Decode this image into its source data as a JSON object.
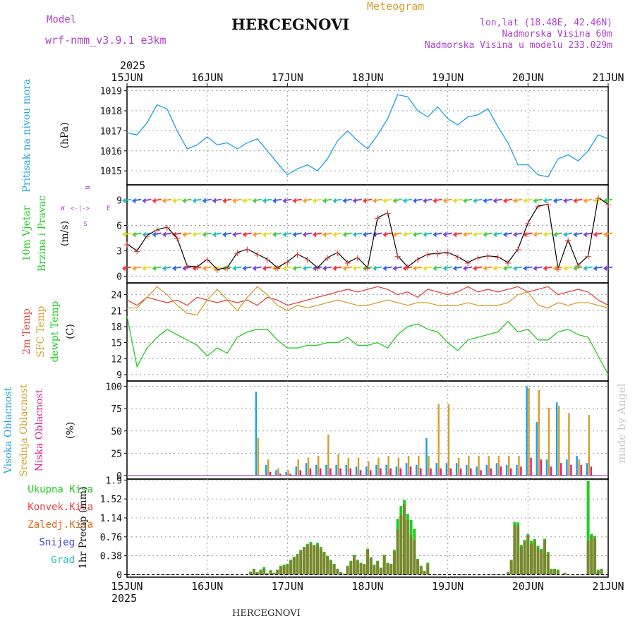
{
  "header": {
    "model_label": "Model",
    "model_name": "wrf-nmm_v3.9.1 e3km",
    "title": "HERCEGNOVI",
    "subtitle": "Meteogram",
    "coords": "lon,lat (18.48E, 42.46N)",
    "elevation": "Nadmorska Visina 60m",
    "model_elevation": "Nadmorska Visina u modelu 233.029m",
    "year_top": "2025",
    "year_bottom": "2025",
    "footer_title": "HERCEGNOVI",
    "watermark": "made by Angel"
  },
  "colors": {
    "pressure": "#1ea0e6",
    "t2m": "#e84040",
    "sfc": "#d4a030",
    "dew": "#22cc22",
    "high_cloud": "#1ea0e6",
    "mid_cloud": "#d4a030",
    "low_cloud": "#e0208a",
    "total_precip": "#22cc22",
    "conv_precip": "#e84040",
    "frozen_precip": "#e06a20",
    "snow": "#4040e0",
    "graupel": "#22c0c0",
    "wind_label": "#22cc22",
    "compass": "#b040d0",
    "header_purple": "#b040d0",
    "meteogram": "#d4a030"
  },
  "x_ticks": [
    "15JUN",
    "16JUN",
    "17JUN",
    "18JUN",
    "19JUN",
    "20JUN",
    "21JUN"
  ],
  "compass": {
    "n": "N",
    "w": "W",
    "e": "E",
    "s": "S",
    "arrows": "<-|->"
  },
  "chart_data": [
    {
      "type": "line",
      "id": "pressure",
      "title": "Pritisak na nivou mora",
      "ylabel": "(hPa)",
      "ylim": [
        1014.3,
        1019.2
      ],
      "yticks": [
        "1015",
        "1016",
        "1017",
        "1018",
        "1019"
      ],
      "x_hours": [
        0,
        3,
        6,
        9,
        12,
        15,
        18,
        21,
        24,
        27,
        30,
        33,
        36,
        39,
        42,
        45,
        48,
        51,
        54,
        57,
        60,
        63,
        66,
        69,
        72,
        75,
        78,
        81,
        84,
        87,
        90,
        93,
        96,
        99,
        102,
        105,
        108,
        111,
        114,
        117,
        120,
        123,
        126,
        129,
        132,
        135,
        138,
        141,
        144
      ],
      "values": [
        1016.9,
        1016.8,
        1017.4,
        1018.3,
        1018.1,
        1017.0,
        1016.1,
        1016.3,
        1016.7,
        1016.3,
        1016.4,
        1016.1,
        1016.4,
        1016.6,
        1016.0,
        1015.4,
        1014.8,
        1015.1,
        1015.3,
        1015.0,
        1015.6,
        1016.5,
        1017.0,
        1016.5,
        1016.1,
        1016.8,
        1017.6,
        1018.8,
        1018.7,
        1018.0,
        1017.7,
        1018.2,
        1017.6,
        1017.3,
        1017.7,
        1017.8,
        1018.1,
        1017.2,
        1016.4,
        1015.3,
        1015.3,
        1014.8,
        1014.7,
        1015.6,
        1015.8,
        1015.5,
        1016.0,
        1016.8,
        1016.6
      ]
    },
    {
      "type": "line",
      "id": "wind",
      "title": "10m Vjetar",
      "title2": "Brzina i Pravac",
      "ylabel": "(m/s)",
      "ylim": [
        -0.8,
        10.8
      ],
      "yticks": [
        "0",
        "3",
        "6",
        "9"
      ],
      "x_hours": [
        0,
        3,
        6,
        9,
        12,
        15,
        18,
        21,
        24,
        27,
        30,
        33,
        36,
        39,
        42,
        45,
        48,
        51,
        54,
        57,
        60,
        63,
        66,
        69,
        72,
        75,
        78,
        81,
        84,
        87,
        90,
        93,
        96,
        99,
        102,
        105,
        108,
        111,
        114,
        117,
        120,
        123,
        126,
        129,
        132,
        135,
        138,
        141,
        144
      ],
      "values": [
        3.8,
        3.0,
        4.8,
        5.5,
        5.8,
        4.5,
        1.2,
        1.1,
        2.0,
        0.8,
        1.0,
        2.8,
        3.2,
        2.6,
        2.0,
        1.0,
        1.7,
        2.6,
        2.0,
        1.0,
        2.2,
        2.8,
        1.6,
        2.2,
        1.0,
        6.9,
        7.5,
        2.4,
        1.1,
        2.0,
        2.6,
        2.7,
        2.8,
        2.3,
        1.6,
        2.2,
        2.4,
        2.3,
        1.6,
        3.2,
        6.3,
        8.3,
        8.5,
        0.9,
        4.3,
        1.3,
        2.4,
        9.3,
        8.5
      ]
    },
    {
      "type": "line",
      "id": "temperature",
      "title": "2m Temp",
      "title2": "SFC Temp",
      "title3": "dewpt Temp",
      "ylabel": "(C)",
      "ylim": [
        7.8,
        26.2
      ],
      "yticks": [
        "9",
        "12",
        "15",
        "18",
        "21",
        "24"
      ],
      "x_hours": [
        0,
        3,
        6,
        9,
        12,
        15,
        18,
        21,
        24,
        27,
        30,
        33,
        36,
        39,
        42,
        45,
        48,
        51,
        54,
        57,
        60,
        63,
        66,
        69,
        72,
        75,
        78,
        81,
        84,
        87,
        90,
        93,
        96,
        99,
        102,
        105,
        108,
        111,
        114,
        117,
        120,
        123,
        126,
        129,
        132,
        135,
        138,
        141,
        144
      ],
      "series": [
        {
          "name": "2m Temp",
          "values": [
            23.0,
            22.0,
            23.5,
            23.0,
            22.5,
            23.0,
            22.0,
            23.5,
            23.0,
            22.5,
            23.0,
            22.5,
            23.0,
            22.0,
            23.5,
            23.0,
            22.0,
            22.5,
            23.0,
            23.5,
            24.0,
            24.5,
            25.0,
            24.5,
            25.0,
            25.5,
            25.0,
            24.0,
            24.5,
            23.5,
            25.0,
            24.5,
            24.0,
            24.5,
            25.5,
            24.5,
            25.0,
            24.5,
            25.0,
            25.5,
            24.5,
            25.0,
            25.5,
            24.0,
            24.5,
            25.0,
            24.5,
            23.0,
            22.0
          ]
        },
        {
          "name": "SFC Temp",
          "values": [
            21.5,
            21.5,
            23.5,
            25.5,
            24.0,
            22.0,
            20.5,
            20.2,
            23.0,
            25.0,
            23.0,
            21.0,
            23.5,
            25.5,
            24.0,
            22.0,
            21.0,
            22.0,
            21.5,
            22.0,
            22.5,
            23.0,
            22.5,
            22.0,
            22.0,
            22.5,
            23.0,
            22.5,
            22.0,
            22.5,
            22.5,
            22.0,
            22.0,
            22.0,
            22.5,
            22.0,
            22.0,
            22.0,
            22.5,
            24.0,
            24.5,
            22.0,
            21.5,
            22.5,
            22.0,
            22.5,
            22.5,
            22.0,
            21.5
          ]
        },
        {
          "name": "dewpt Temp",
          "values": [
            20.0,
            10.5,
            14.0,
            16.0,
            17.5,
            16.5,
            15.5,
            14.5,
            12.5,
            14.0,
            13.0,
            16.0,
            17.0,
            17.5,
            17.5,
            15.5,
            14.0,
            14.0,
            14.5,
            14.5,
            15.0,
            15.0,
            16.0,
            14.5,
            14.5,
            15.0,
            14.0,
            16.5,
            18.0,
            18.5,
            17.5,
            17.0,
            15.0,
            13.5,
            15.5,
            16.0,
            16.5,
            17.0,
            19.0,
            17.0,
            17.5,
            15.5,
            15.5,
            17.0,
            17.5,
            16.5,
            16.0,
            12.5,
            9.0
          ]
        }
      ]
    },
    {
      "type": "bar",
      "id": "clouds",
      "title": "Visoka Oblacnost",
      "title2": "Srednja Oblacnost",
      "title3": "Niska Oblacnost",
      "ylabel": "(%)",
      "ylim": [
        -4,
        106
      ],
      "yticks": [
        "0",
        "25",
        "50",
        "75",
        "100"
      ],
      "x_hours": [
        0,
        3,
        6,
        9,
        12,
        15,
        18,
        21,
        24,
        27,
        30,
        33,
        36,
        39,
        42,
        45,
        48,
        51,
        54,
        57,
        60,
        63,
        66,
        69,
        72,
        75,
        78,
        81,
        84,
        87,
        90,
        93,
        96,
        99,
        102,
        105,
        108,
        111,
        114,
        117,
        120,
        123,
        126,
        129,
        132,
        135,
        138,
        141,
        144
      ],
      "series": [
        {
          "name": "Visoka Oblacnost",
          "values": [
            0,
            0,
            0,
            0,
            0,
            0,
            0,
            0,
            0,
            0,
            0,
            0,
            0,
            94,
            12,
            6,
            4,
            10,
            14,
            12,
            12,
            12,
            12,
            10,
            10,
            12,
            12,
            10,
            14,
            12,
            42,
            14,
            14,
            14,
            12,
            10,
            12,
            14,
            12,
            12,
            100,
            60,
            18,
            82,
            18,
            22,
            14,
            0,
            0
          ]
        },
        {
          "name": "Srednja Oblacnost",
          "values": [
            0,
            0,
            0,
            0,
            0,
            0,
            0,
            0,
            0,
            0,
            0,
            0,
            0,
            42,
            18,
            8,
            6,
            18,
            20,
            22,
            46,
            24,
            20,
            20,
            16,
            20,
            22,
            20,
            22,
            22,
            22,
            80,
            80,
            20,
            22,
            22,
            22,
            22,
            22,
            22,
            98,
            96,
            76,
            78,
            70,
            18,
            68,
            0,
            0
          ]
        },
        {
          "name": "Niska Oblacnost",
          "values": [
            0,
            0,
            0,
            0,
            0,
            0,
            0,
            0,
            0,
            0,
            0,
            0,
            0,
            0,
            4,
            2,
            2,
            6,
            8,
            8,
            8,
            8,
            8,
            6,
            6,
            8,
            8,
            8,
            10,
            8,
            8,
            8,
            8,
            8,
            8,
            6,
            8,
            10,
            8,
            10,
            20,
            18,
            10,
            14,
            12,
            12,
            10,
            0,
            0
          ]
        }
      ]
    },
    {
      "type": "bar",
      "id": "precip",
      "title": "Ukupna Kisa",
      "title2": "Konvek.Kisa",
      "title3": "Zaledj.Kisa",
      "title4": "Snijeg",
      "title5": "Grad",
      "ylabel": "1hr Precip (mm)",
      "ylim": [
        -0.05,
        1.92
      ],
      "yticks": [
        "0",
        "0.38",
        "0.76",
        "1.14",
        "1.52",
        "1.9"
      ],
      "x_hours": [
        36,
        37,
        38,
        39,
        40,
        41,
        42,
        43,
        44,
        45,
        46,
        47,
        48,
        49,
        50,
        51,
        52,
        53,
        54,
        55,
        56,
        57,
        58,
        59,
        60,
        61,
        62,
        63,
        64,
        65,
        66,
        67,
        68,
        69,
        70,
        71,
        72,
        73,
        74,
        75,
        76,
        77,
        78,
        79,
        80,
        81,
        82,
        83,
        84,
        85,
        86,
        87,
        88,
        89,
        90,
        91,
        92,
        93,
        94,
        95,
        96,
        97,
        98,
        99,
        100,
        101,
        102,
        103,
        104,
        105,
        106,
        107,
        108,
        109,
        110,
        111,
        112,
        113,
        114,
        115,
        116,
        117,
        118,
        119,
        120,
        121,
        122,
        123,
        124,
        125,
        126,
        127,
        128,
        129,
        130,
        131,
        132,
        133,
        134,
        135,
        136,
        137,
        138,
        139,
        140,
        141,
        142,
        143,
        144
      ],
      "series": [
        {
          "name": "Ukupna Kisa",
          "values": [
            0,
            0.06,
            0.12,
            0.05,
            0.1,
            0.15,
            0.03,
            0.09,
            0.04,
            0.1,
            0.18,
            0.2,
            0.22,
            0.3,
            0.36,
            0.42,
            0.5,
            0.56,
            0.62,
            0.66,
            0.6,
            0.64,
            0.56,
            0.46,
            0.38,
            0.3,
            0.22,
            0.12,
            0.05,
            0.02,
            0.18,
            0.28,
            0.4,
            0.3,
            0.24,
            0.22,
            0.52,
            0.35,
            0.2,
            0.28,
            0.14,
            0.4,
            0.24,
            0.22,
            0.5,
            1.12,
            1.38,
            1.5,
            1.22,
            1.1,
            0.92,
            0.32,
            0.18,
            0.08,
            0.24,
            0,
            0,
            0,
            0,
            0,
            0,
            0,
            0,
            0,
            0,
            0,
            0,
            0,
            0,
            0,
            0,
            0,
            0,
            0,
            0,
            0,
            0,
            0,
            0.05,
            0.3,
            1.06,
            1.05,
            0.6,
            0.7,
            0.82,
            0.68,
            0.72,
            0.58,
            0.52,
            0.72,
            0.46,
            0.12,
            0.12,
            0.1,
            0,
            0.04,
            0,
            0,
            0,
            0,
            0,
            0,
            1.88,
            0.82,
            0.78,
            0.1,
            0.12,
            0,
            0
          ]
        },
        {
          "name": "Konvek.Kisa",
          "values": [
            0,
            0.05,
            0.1,
            0.04,
            0.08,
            0.12,
            0.02,
            0.08,
            0.03,
            0.09,
            0.16,
            0.18,
            0.2,
            0.28,
            0.34,
            0.4,
            0.48,
            0.54,
            0.6,
            0.62,
            0.58,
            0.6,
            0.52,
            0.44,
            0.36,
            0.28,
            0.2,
            0.1,
            0.04,
            0.02,
            0.16,
            0.26,
            0.38,
            0.28,
            0.22,
            0.2,
            0.5,
            0.33,
            0.18,
            0.26,
            0.12,
            0.38,
            0.22,
            0.2,
            0.46,
            0.9,
            1.2,
            1.42,
            1.1,
            0.8,
            0.7,
            0.3,
            0.16,
            0.06,
            0.2,
            0,
            0,
            0,
            0,
            0,
            0,
            0,
            0,
            0,
            0,
            0,
            0,
            0,
            0,
            0,
            0,
            0,
            0,
            0,
            0,
            0,
            0,
            0,
            0.04,
            0.28,
            1.0,
            0.98,
            0.56,
            0.66,
            0.78,
            0.62,
            0.68,
            0.54,
            0.48,
            0.68,
            0.42,
            0.1,
            0.1,
            0.08,
            0,
            0.03,
            0,
            0,
            0,
            0,
            0,
            0,
            0.68,
            0.78,
            0.74,
            0.08,
            0.1,
            0,
            0
          ]
        }
      ]
    }
  ]
}
